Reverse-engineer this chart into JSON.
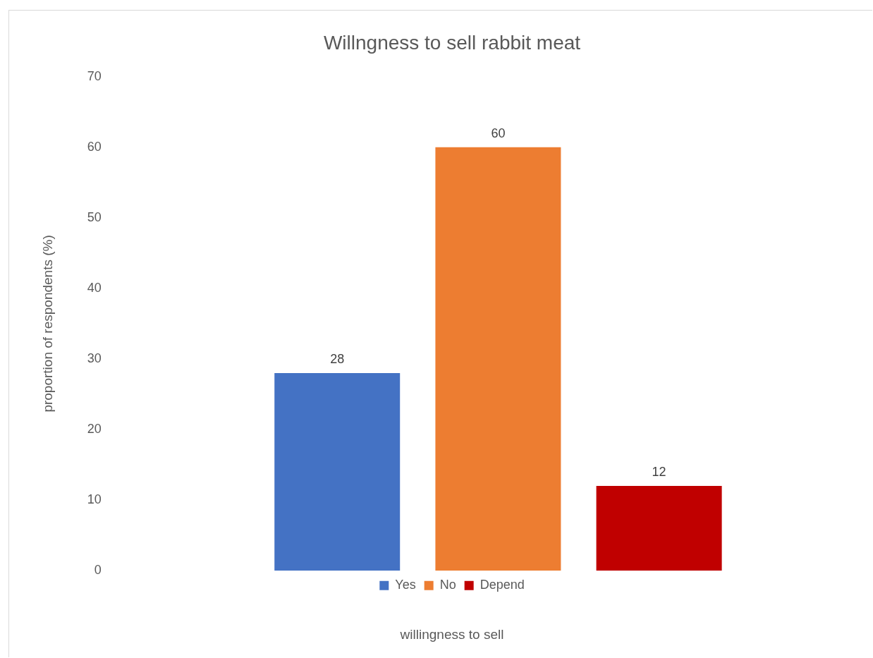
{
  "chart_data": {
    "type": "bar",
    "title": "Willngness to sell rabbit meat",
    "xlabel": "willingness to sell",
    "ylabel": "proportion of respondents (%)",
    "categories": [
      null
    ],
    "series": [
      {
        "name": "Yes",
        "color": "#4472c4",
        "values": [
          28
        ]
      },
      {
        "name": "No",
        "color": "#ed7d31",
        "values": [
          60
        ]
      },
      {
        "name": "Depend",
        "color": "#c00000",
        "values": [
          12
        ]
      }
    ],
    "ylim": [
      0,
      70
    ],
    "yticks": [
      0,
      10,
      20,
      30,
      40,
      50,
      60,
      70
    ],
    "data_labels": true,
    "legend": "bottom"
  }
}
